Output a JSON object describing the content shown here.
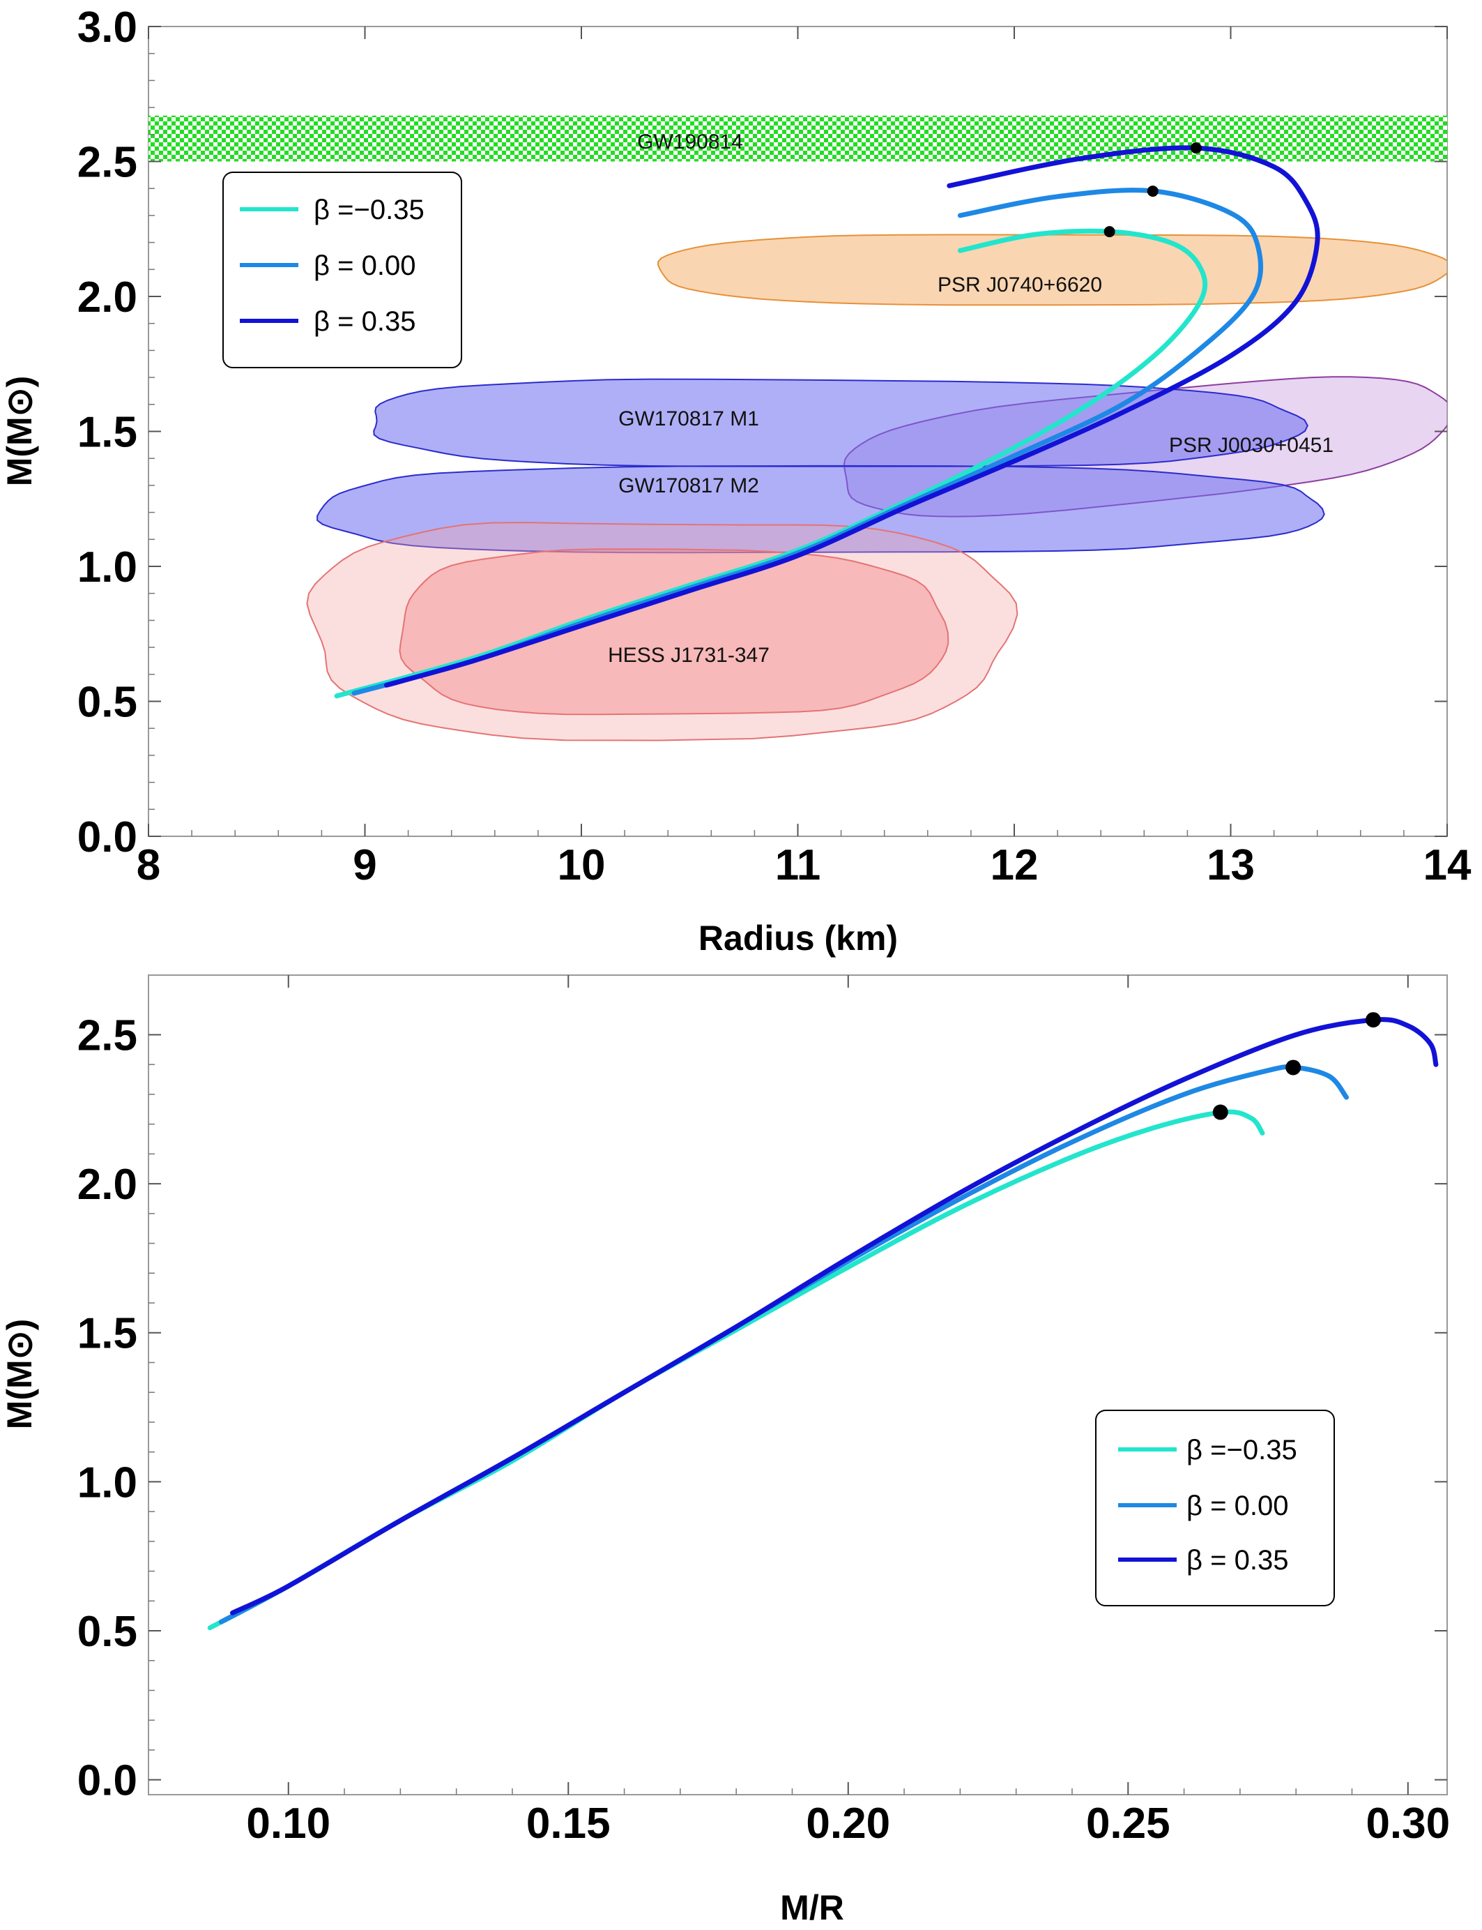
{
  "colors": {
    "beta_neg": "#22e5cc",
    "beta_zero": "#1e88e5",
    "beta_pos": "#1212d6",
    "gw190814": "#22dd22",
    "psr_j0740": "#f7b97d",
    "gw170817": "#6e6ef0",
    "psr_j0030": "#b98ad6",
    "hess": "#f4a3a3",
    "peak": "#000000"
  },
  "chart_data": [
    {
      "type": "line",
      "title": "",
      "xlabel": "Radius (km)",
      "ylabel": "M(M⊙)",
      "xlim": [
        8,
        14
      ],
      "ylim": [
        0,
        3
      ],
      "xticks": [
        "8",
        "9",
        "10",
        "11",
        "12",
        "13",
        "14"
      ],
      "yticks": [
        "0.0",
        "0.5",
        "1.0",
        "1.5",
        "2.0",
        "2.5",
        "3.0"
      ],
      "grid": false,
      "legend_position": "upper-left",
      "regions": [
        {
          "label": "GW190814",
          "kind": "band",
          "ymin": 2.5,
          "ymax": 2.67,
          "pattern": "checkerboard"
        },
        {
          "label": "PSR J0740+6620",
          "kind": "ellipse",
          "x_range": [
            10.35,
            14.0
          ],
          "y_range": [
            1.97,
            2.23
          ]
        },
        {
          "label": "GW170817 M1",
          "kind": "ellipse",
          "x_range": [
            9.0,
            13.3
          ],
          "y_range": [
            1.37,
            1.69
          ]
        },
        {
          "label": "GW170817 M2",
          "kind": "ellipse",
          "x_range": [
            8.77,
            13.4
          ],
          "y_range": [
            1.05,
            1.37
          ]
        },
        {
          "label": "PSR J0030+0451",
          "kind": "ellipse",
          "x_range": [
            11.2,
            14.0
          ],
          "y_range": [
            1.24,
            1.65
          ]
        },
        {
          "label": "HESS J1731-347",
          "kind": "ellipse",
          "x_range": [
            8.75,
            11.97
          ],
          "y_range": [
            0.37,
            1.17
          ]
        }
      ],
      "series": [
        {
          "name": "β =−0.35",
          "color_key": "beta_neg",
          "x": [
            8.87,
            9.5,
            10.0,
            10.5,
            11.0,
            11.5,
            12.0,
            12.4,
            12.7,
            12.87,
            12.85,
            12.72,
            12.45,
            12.1,
            11.75
          ],
          "y": [
            0.52,
            0.66,
            0.8,
            0.93,
            1.06,
            1.24,
            1.44,
            1.63,
            1.82,
            2.0,
            2.12,
            2.2,
            2.24,
            2.23,
            2.17
          ],
          "peak": [
            12.44,
            2.24
          ]
        },
        {
          "name": "β = 0.00",
          "color_key": "beta_zero",
          "x": [
            8.95,
            9.5,
            10.0,
            10.5,
            11.0,
            11.5,
            12.0,
            12.5,
            12.85,
            13.1,
            13.13,
            13.02,
            12.65,
            12.2,
            11.75
          ],
          "y": [
            0.53,
            0.65,
            0.79,
            0.92,
            1.05,
            1.23,
            1.41,
            1.6,
            1.8,
            2.0,
            2.17,
            2.3,
            2.39,
            2.37,
            2.3
          ],
          "peak": [
            12.64,
            2.39
          ]
        },
        {
          "name": "β = 0.35",
          "color_key": "beta_pos",
          "x": [
            9.1,
            9.5,
            10.0,
            10.5,
            11.0,
            11.5,
            12.0,
            12.5,
            13.0,
            13.3,
            13.4,
            13.35,
            13.2,
            12.84,
            12.3,
            11.7
          ],
          "y": [
            0.56,
            0.65,
            0.78,
            0.91,
            1.04,
            1.22,
            1.39,
            1.57,
            1.78,
            1.98,
            2.2,
            2.35,
            2.48,
            2.55,
            2.51,
            2.41
          ],
          "peak": [
            12.84,
            2.55
          ]
        }
      ]
    },
    {
      "type": "line",
      "title": "",
      "xlabel": "M/R",
      "ylabel": "M(M⊙)",
      "xlim": [
        0.075,
        0.307
      ],
      "ylim": [
        -0.05,
        2.7
      ],
      "xticks": [
        "0.10",
        "0.15",
        "0.20",
        "0.25",
        "0.30"
      ],
      "yticks": [
        "0.0",
        "0.5",
        "1.0",
        "1.5",
        "2.0",
        "2.5"
      ],
      "grid": false,
      "legend_position": "lower-right",
      "series": [
        {
          "name": "β =−0.35",
          "color_key": "beta_neg",
          "x": [
            0.086,
            0.1,
            0.12,
            0.14,
            0.16,
            0.18,
            0.2,
            0.22,
            0.24,
            0.255,
            0.267,
            0.272,
            0.274
          ],
          "y": [
            0.51,
            0.65,
            0.87,
            1.07,
            1.3,
            1.51,
            1.72,
            1.92,
            2.09,
            2.19,
            2.24,
            2.22,
            2.17
          ],
          "peak": [
            0.2665,
            2.24
          ]
        },
        {
          "name": "β = 0.00",
          "color_key": "beta_zero",
          "x": [
            0.088,
            0.1,
            0.12,
            0.14,
            0.16,
            0.18,
            0.2,
            0.22,
            0.24,
            0.26,
            0.275,
            0.28,
            0.286,
            0.289
          ],
          "y": [
            0.53,
            0.65,
            0.87,
            1.08,
            1.3,
            1.52,
            1.74,
            1.95,
            2.14,
            2.3,
            2.38,
            2.39,
            2.36,
            2.29
          ],
          "peak": [
            0.2795,
            2.39
          ]
        },
        {
          "name": "β = 0.35",
          "color_key": "beta_pos",
          "x": [
            0.09,
            0.1,
            0.12,
            0.14,
            0.16,
            0.18,
            0.2,
            0.22,
            0.24,
            0.26,
            0.28,
            0.294,
            0.3,
            0.304,
            0.305
          ],
          "y": [
            0.56,
            0.65,
            0.87,
            1.08,
            1.3,
            1.52,
            1.75,
            1.97,
            2.17,
            2.35,
            2.5,
            2.55,
            2.53,
            2.47,
            2.4
          ],
          "peak": [
            0.2938,
            2.55
          ]
        }
      ]
    }
  ]
}
